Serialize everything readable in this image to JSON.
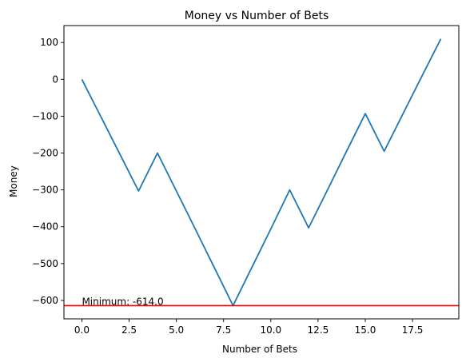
{
  "chart_data": {
    "type": "line",
    "title": "Money vs Number of Bets",
    "xlabel": "Number of Bets",
    "ylabel": "Money",
    "xlim": [
      -0.95,
      19.95
    ],
    "ylim": [
      -650,
      146
    ],
    "x_ticks": [
      0.0,
      2.5,
      5.0,
      7.5,
      10.0,
      12.5,
      15.0,
      17.5
    ],
    "x_tick_labels": [
      "0.0",
      "2.5",
      "5.0",
      "7.5",
      "10.0",
      "12.5",
      "15.0",
      "17.5"
    ],
    "y_ticks": [
      -600,
      -500,
      -400,
      -300,
      -200,
      -100,
      0,
      100
    ],
    "y_tick_labels": [
      "−600",
      "−500",
      "−400",
      "−300",
      "−200",
      "−100",
      "0",
      "100"
    ],
    "grid": false,
    "series": [
      {
        "color": "#1f77b4",
        "x": [
          0,
          1,
          2,
          3,
          4,
          5,
          6,
          7,
          8,
          9,
          10,
          11,
          12,
          13,
          14,
          15,
          16,
          17,
          18,
          19
        ],
        "y": [
          0,
          -101,
          -202,
          -303,
          -200,
          -303,
          -406,
          -510,
          -614,
          -510,
          -406,
          -300,
          -403,
          -300,
          -196,
          -93,
          -195,
          -93,
          9,
          110
        ]
      }
    ],
    "reference_line": {
      "y": -614.0,
      "color": "#ff0000"
    },
    "annotation": {
      "text": "Minimum: -614.0",
      "x": 0,
      "y": -614.0
    }
  }
}
